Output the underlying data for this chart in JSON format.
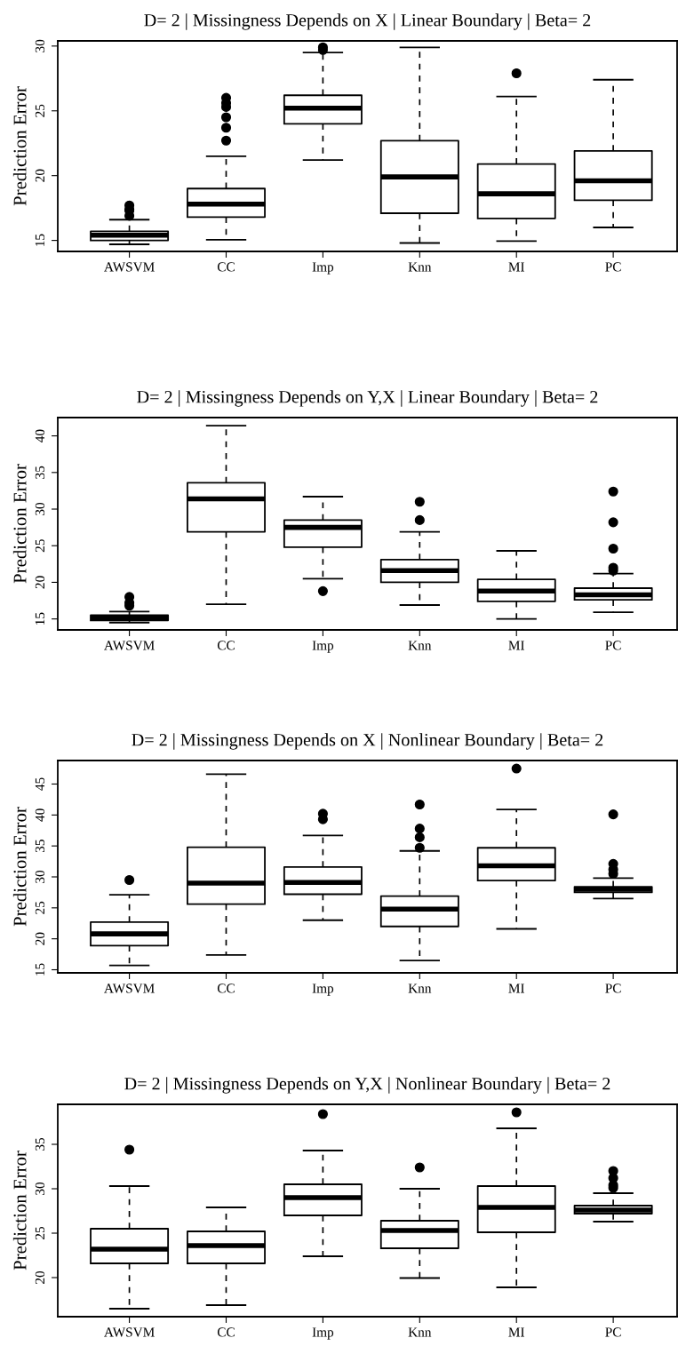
{
  "chart_data": [
    {
      "type": "box",
      "title": "D= 2 | Missingness Depends on X | Linear Boundary | Beta= 2",
      "ylabel": "Prediction Error",
      "categories": [
        "AWSVM",
        "CC",
        "Imp",
        "Knn",
        "MI",
        "PC"
      ],
      "ylim": [
        14.15,
        30.4
      ],
      "yticks": [
        15,
        20,
        25,
        30
      ],
      "boxes": [
        {
          "low": 14.7,
          "q1": 15.0,
          "median": 15.4,
          "q3": 15.7,
          "high": 16.6,
          "outliers": [
            16.9,
            17.3,
            17.4,
            17.7
          ]
        },
        {
          "low": 15.05,
          "q1": 16.8,
          "median": 17.8,
          "q3": 19.0,
          "high": 21.5,
          "outliers": [
            22.7,
            23.7,
            24.5,
            25.3,
            25.6,
            26.0
          ]
        },
        {
          "low": 21.2,
          "q1": 24.0,
          "median": 25.2,
          "q3": 26.2,
          "high": 29.5,
          "outliers": [
            29.7,
            29.9
          ]
        },
        {
          "low": 14.8,
          "q1": 17.1,
          "median": 19.9,
          "q3": 22.7,
          "high": 29.9
        },
        {
          "low": 14.95,
          "q1": 16.7,
          "median": 18.6,
          "q3": 20.9,
          "high": 26.1,
          "outliers": [
            27.9
          ]
        },
        {
          "low": 16.0,
          "q1": 18.1,
          "median": 19.6,
          "q3": 21.9,
          "high": 27.4
        }
      ]
    },
    {
      "type": "box",
      "title": "D= 2 | Missingness Depends on Y,X | Linear Boundary | Beta= 2",
      "ylabel": "Prediction Error",
      "categories": [
        "AWSVM",
        "CC",
        "Imp",
        "Knn",
        "MI",
        "PC"
      ],
      "ylim": [
        13.5,
        42.5
      ],
      "yticks": [
        15,
        20,
        25,
        30,
        35,
        40
      ],
      "boxes": [
        {
          "low": 14.5,
          "q1": 14.8,
          "median": 15.1,
          "q3": 15.5,
          "high": 16.0,
          "outliers": [
            16.8,
            17.2,
            18.0
          ]
        },
        {
          "low": 17.0,
          "q1": 26.9,
          "median": 31.4,
          "q3": 33.6,
          "high": 41.4
        },
        {
          "low": 20.5,
          "q1": 24.8,
          "median": 27.5,
          "q3": 28.5,
          "high": 31.7,
          "outliers": [
            18.8
          ]
        },
        {
          "low": 16.9,
          "q1": 20.0,
          "median": 21.6,
          "q3": 23.1,
          "high": 26.9,
          "outliers": [
            28.5,
            31.0
          ]
        },
        {
          "low": 15.0,
          "q1": 17.4,
          "median": 18.8,
          "q3": 20.4,
          "high": 24.3
        },
        {
          "low": 15.9,
          "q1": 17.6,
          "median": 18.3,
          "q3": 19.2,
          "high": 21.2,
          "outliers": [
            21.6,
            22.0,
            24.6,
            28.2,
            32.4
          ]
        }
      ]
    },
    {
      "type": "box",
      "title": "D= 2 | Missingness Depends on X | Nonlinear Boundary | Beta= 2",
      "ylabel": "Prediction Error",
      "categories": [
        "AWSVM",
        "CC",
        "Imp",
        "Knn",
        "MI",
        "PC"
      ],
      "ylim": [
        14.5,
        48.8
      ],
      "yticks": [
        15,
        20,
        25,
        30,
        35,
        40,
        45
      ],
      "boxes": [
        {
          "low": 15.7,
          "q1": 18.9,
          "median": 20.8,
          "q3": 22.7,
          "high": 27.1,
          "outliers": [
            29.5
          ]
        },
        {
          "low": 17.4,
          "q1": 25.6,
          "median": 29.0,
          "q3": 34.8,
          "high": 46.6
        },
        {
          "low": 23.0,
          "q1": 27.2,
          "median": 29.1,
          "q3": 31.6,
          "high": 36.7,
          "outliers": [
            39.3,
            40.2
          ]
        },
        {
          "low": 16.5,
          "q1": 22.0,
          "median": 24.8,
          "q3": 26.9,
          "high": 34.2,
          "outliers": [
            34.7,
            36.4,
            37.8,
            41.7
          ]
        },
        {
          "low": 21.6,
          "q1": 29.4,
          "median": 31.8,
          "q3": 34.7,
          "high": 40.9,
          "outliers": [
            47.5
          ]
        },
        {
          "low": 26.5,
          "q1": 27.5,
          "median": 28.0,
          "q3": 28.4,
          "high": 29.8,
          "outliers": [
            30.5,
            31.2,
            32.1,
            40.1
          ]
        }
      ]
    },
    {
      "type": "box",
      "title": "D= 2 | Missingness Depends on Y,X | Nonlinear Boundary | Beta= 2",
      "ylabel": "Prediction Error",
      "categories": [
        "AWSVM",
        "CC",
        "Imp",
        "Knn",
        "MI",
        "PC"
      ],
      "ylim": [
        15.6,
        39.5
      ],
      "yticks": [
        20,
        25,
        30,
        35
      ],
      "boxes": [
        {
          "low": 16.5,
          "q1": 21.6,
          "median": 23.2,
          "q3": 25.5,
          "high": 30.3,
          "outliers": [
            34.4
          ]
        },
        {
          "low": 16.9,
          "q1": 21.6,
          "median": 23.6,
          "q3": 25.2,
          "high": 27.9
        },
        {
          "low": 22.4,
          "q1": 27.0,
          "median": 29.0,
          "q3": 30.5,
          "high": 34.3,
          "outliers": [
            38.4
          ]
        },
        {
          "low": 19.95,
          "q1": 23.3,
          "median": 25.3,
          "q3": 26.4,
          "high": 30.0,
          "outliers": [
            32.4
          ]
        },
        {
          "low": 18.9,
          "q1": 25.1,
          "median": 27.9,
          "q3": 30.3,
          "high": 36.8,
          "outliers": [
            38.6
          ]
        },
        {
          "low": 26.3,
          "q1": 27.2,
          "median": 27.6,
          "q3": 28.1,
          "high": 29.5,
          "outliers": [
            30.1,
            30.4,
            31.2,
            32.0
          ]
        }
      ]
    }
  ]
}
